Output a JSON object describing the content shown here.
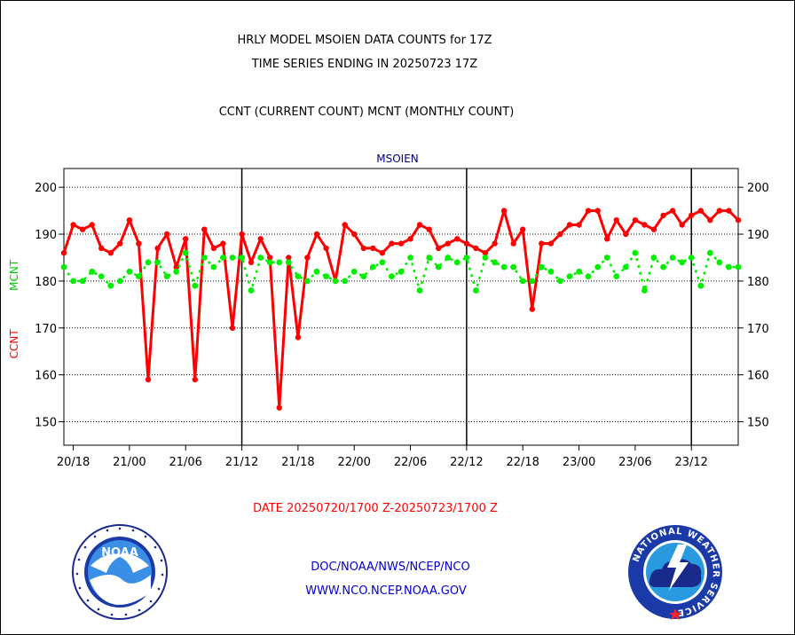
{
  "header": {
    "title_line1": "HRLY MODEL MSOIEN DATA COUNTS for 17Z",
    "title_line2": "TIME SERIES ENDING IN 20250723 17Z",
    "subtitle": "CCNT (CURRENT COUNT) MCNT (MONTHLY COUNT)"
  },
  "footer": {
    "date_range": "DATE 20250720/1700 Z-20250723/1700 Z",
    "org_line": "DOC/NOAA/NWS/NCEP/NCO",
    "url_line": "WWW.NCO.NCEP.NOAA.GOV"
  },
  "logos": {
    "left_text": "NOAA",
    "right_text": "NATIONAL WEATHER SERVICE"
  },
  "chart_data": {
    "type": "line",
    "title": "MSOIEN",
    "ylabel_left": [
      "CCNT",
      "MCNT"
    ],
    "ylim": [
      145,
      204
    ],
    "yticks": [
      150,
      160,
      170,
      180,
      190,
      200
    ],
    "grid": true,
    "x_tick_labels": [
      "20/18",
      "21/00",
      "21/06",
      "21/12",
      "21/18",
      "22/00",
      "22/06",
      "22/12",
      "22/18",
      "23/00",
      "23/06",
      "23/12"
    ],
    "x_tick_hours": [
      1,
      7,
      13,
      19,
      25,
      31,
      37,
      43,
      49,
      55,
      61,
      67
    ],
    "day_boundary_hours": [
      19,
      43,
      67
    ],
    "x_range_hours": [
      0,
      72
    ],
    "series": [
      {
        "name": "CCNT",
        "color": "#ff0000",
        "values": [
          186,
          192,
          191,
          192,
          187,
          186,
          188,
          193,
          188,
          159,
          187,
          190,
          183,
          189,
          159,
          191,
          187,
          188,
          170,
          190,
          184,
          189,
          185,
          153,
          185,
          168,
          185,
          190,
          187,
          180,
          192,
          190,
          187,
          187,
          186,
          188,
          188,
          189,
          192,
          191,
          187,
          188,
          189,
          188,
          187,
          186,
          188,
          195,
          188,
          191,
          174,
          188,
          188,
          190,
          192,
          192,
          195,
          195,
          189,
          193,
          190,
          193,
          192,
          191,
          194,
          195,
          192,
          194,
          195,
          193,
          195,
          195,
          193
        ]
      },
      {
        "name": "MCNT",
        "color": "#00ee00",
        "values": [
          183,
          180,
          180,
          182,
          181,
          179,
          180,
          182,
          181,
          184,
          184,
          181,
          182,
          186,
          179,
          185,
          183,
          185,
          185,
          185,
          178,
          185,
          184,
          184,
          184,
          181,
          180,
          182,
          181,
          180,
          180,
          182,
          181,
          183,
          184,
          181,
          182,
          185,
          178,
          185,
          183,
          185,
          184,
          185,
          178,
          185,
          184,
          183,
          183,
          180,
          180,
          183,
          182,
          180,
          181,
          182,
          181,
          183,
          185,
          181,
          183,
          186,
          178,
          185,
          183,
          185,
          184,
          185,
          179,
          186,
          184,
          183,
          183
        ]
      }
    ]
  }
}
